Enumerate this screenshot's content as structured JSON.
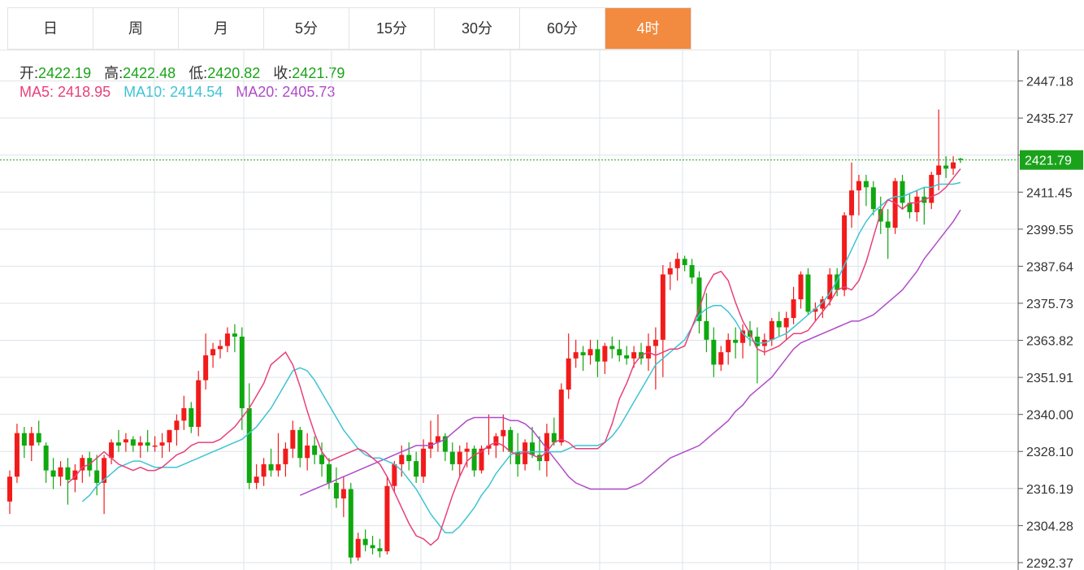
{
  "tabs": [
    {
      "label": "日",
      "active": false
    },
    {
      "label": "周",
      "active": false
    },
    {
      "label": "月",
      "active": false
    },
    {
      "label": "5分",
      "active": false
    },
    {
      "label": "15分",
      "active": false
    },
    {
      "label": "30分",
      "active": false
    },
    {
      "label": "60分",
      "active": false
    },
    {
      "label": "4时",
      "active": true
    }
  ],
  "legend": {
    "open_label": "开:",
    "open": "2422.19",
    "high_label": "高:",
    "high": "2422.48",
    "low_label": "低:",
    "low": "2420.82",
    "close_label": "收:",
    "close": "2421.79",
    "ma5_label": "MA5:",
    "ma5": "2418.95",
    "ma10_label": "MA10:",
    "ma10": "2414.54",
    "ma20_label": "MA20:",
    "ma20": "2405.73"
  },
  "colors": {
    "up": "#f21b1b",
    "down": "#0fa80f",
    "ma5": "#e8407a",
    "ma10": "#3fc3d4",
    "ma20": "#b04bc9",
    "grid": "#dde3ea",
    "price_line": "#1aa31a",
    "active_tab": "#f28a3f"
  },
  "chart_data": {
    "type": "candlestick",
    "y_ticks": [
      "2447.18",
      "2435.27",
      "2423.36",
      "2411.45",
      "2399.55",
      "2387.64",
      "2375.73",
      "2363.82",
      "2351.91",
      "2340.00",
      "2328.10",
      "2316.19",
      "2304.28",
      "2292.37"
    ],
    "ylim": [
      2290.0,
      2457.0
    ],
    "current_price_label": "2421.79",
    "current_price": 2421.79,
    "grid": true,
    "candles": [
      [
        2312,
        2322,
        2308,
        2320
      ],
      [
        2320,
        2337,
        2318,
        2334
      ],
      [
        2334,
        2336,
        2326,
        2330
      ],
      [
        2330,
        2336,
        2325,
        2334
      ],
      [
        2334,
        2338,
        2330,
        2331
      ],
      [
        2330,
        2331,
        2318,
        2322
      ],
      [
        2322,
        2326,
        2316,
        2320
      ],
      [
        2320,
        2325,
        2317,
        2323
      ],
      [
        2323,
        2326,
        2311,
        2319
      ],
      [
        2319,
        2324,
        2315,
        2322
      ],
      [
        2322,
        2327,
        2318,
        2326
      ],
      [
        2326,
        2328,
        2320,
        2322
      ],
      [
        2322,
        2327,
        2314,
        2318
      ],
      [
        2318,
        2327,
        2308,
        2326
      ],
      [
        2326,
        2332,
        2324,
        2331
      ],
      [
        2331,
        2335,
        2328,
        2330
      ],
      [
        2331,
        2334,
        2328,
        2332
      ],
      [
        2332,
        2333,
        2328,
        2330
      ],
      [
        2330,
        2333,
        2326,
        2331
      ],
      [
        2331,
        2335,
        2328,
        2330
      ],
      [
        2330,
        2333,
        2328,
        2330
      ],
      [
        2330,
        2334,
        2326,
        2331
      ],
      [
        2331,
        2335,
        2328,
        2335
      ],
      [
        2335,
        2340,
        2330,
        2338
      ],
      [
        2338,
        2346,
        2335,
        2342
      ],
      [
        2342,
        2344,
        2334,
        2336
      ],
      [
        2336,
        2354,
        2333,
        2351
      ],
      [
        2351,
        2366,
        2348,
        2359
      ],
      [
        2359,
        2363,
        2355,
        2361
      ],
      [
        2361,
        2364,
        2358,
        2362
      ],
      [
        2362,
        2368,
        2360,
        2366
      ],
      [
        2366,
        2369,
        2360,
        2365
      ],
      [
        2365,
        2368,
        2335,
        2342
      ],
      [
        2342,
        2350,
        2316,
        2318
      ],
      [
        2318,
        2324,
        2316,
        2320
      ],
      [
        2320,
        2326,
        2317,
        2324
      ],
      [
        2324,
        2329,
        2320,
        2322
      ],
      [
        2322,
        2334,
        2320,
        2324
      ],
      [
        2324,
        2331,
        2320,
        2329
      ],
      [
        2329,
        2338,
        2326,
        2335
      ],
      [
        2335,
        2336,
        2323,
        2326
      ],
      [
        2326,
        2334,
        2322,
        2330
      ],
      [
        2330,
        2333,
        2324,
        2327
      ],
      [
        2327,
        2331,
        2320,
        2324
      ],
      [
        2324,
        2326,
        2316,
        2318
      ],
      [
        2318,
        2323,
        2310,
        2313
      ],
      [
        2313,
        2320,
        2307,
        2316
      ],
      [
        2316,
        2318,
        2292,
        2294
      ],
      [
        2294,
        2302,
        2293,
        2300
      ],
      [
        2300,
        2303,
        2296,
        2298
      ],
      [
        2298,
        2301,
        2295,
        2297
      ],
      [
        2297,
        2300,
        2294,
        2296
      ],
      [
        2296,
        2320,
        2295,
        2317
      ],
      [
        2317,
        2325,
        2315,
        2324
      ],
      [
        2324,
        2330,
        2320,
        2327
      ],
      [
        2327,
        2331,
        2322,
        2325
      ],
      [
        2325,
        2328,
        2318,
        2320
      ],
      [
        2320,
        2332,
        2318,
        2329
      ],
      [
        2329,
        2338,
        2326,
        2331
      ],
      [
        2331,
        2340,
        2328,
        2333
      ],
      [
        2333,
        2334,
        2325,
        2328
      ],
      [
        2328,
        2331,
        2322,
        2324
      ],
      [
        2324,
        2330,
        2320,
        2328
      ],
      [
        2328,
        2331,
        2323,
        2329
      ],
      [
        2329,
        2330,
        2320,
        2322
      ],
      [
        2322,
        2330,
        2321,
        2329
      ],
      [
        2329,
        2340,
        2327,
        2330
      ],
      [
        2330,
        2334,
        2326,
        2333
      ],
      [
        2333,
        2340,
        2328,
        2335
      ],
      [
        2335,
        2336,
        2324,
        2328
      ],
      [
        2328,
        2334,
        2320,
        2324
      ],
      [
        2324,
        2332,
        2322,
        2331
      ],
      [
        2331,
        2336,
        2326,
        2327
      ],
      [
        2327,
        2333,
        2322,
        2325
      ],
      [
        2325,
        2337,
        2320,
        2334
      ],
      [
        2334,
        2339,
        2330,
        2331
      ],
      [
        2331,
        2350,
        2330,
        2348
      ],
      [
        2348,
        2366,
        2345,
        2358
      ],
      [
        2358,
        2364,
        2355,
        2360
      ],
      [
        2360,
        2362,
        2354,
        2359
      ],
      [
        2359,
        2364,
        2356,
        2361
      ],
      [
        2361,
        2364,
        2352,
        2357
      ],
      [
        2357,
        2363,
        2353,
        2362
      ],
      [
        2362,
        2365,
        2358,
        2361
      ],
      [
        2361,
        2364,
        2357,
        2359
      ],
      [
        2359,
        2362,
        2356,
        2358
      ],
      [
        2358,
        2362,
        2355,
        2360
      ],
      [
        2360,
        2363,
        2356,
        2358
      ],
      [
        2358,
        2366,
        2354,
        2362
      ],
      [
        2362,
        2368,
        2348,
        2364
      ],
      [
        2364,
        2388,
        2352,
        2385
      ],
      [
        2385,
        2389,
        2380,
        2387
      ],
      [
        2387,
        2392,
        2383,
        2390
      ],
      [
        2390,
        2391,
        2386,
        2388
      ],
      [
        2388,
        2390,
        2382,
        2384
      ],
      [
        2384,
        2386,
        2366,
        2370
      ],
      [
        2370,
        2379,
        2360,
        2364
      ],
      [
        2364,
        2368,
        2352,
        2356
      ],
      [
        2356,
        2362,
        2354,
        2360
      ],
      [
        2360,
        2366,
        2356,
        2364
      ],
      [
        2364,
        2368,
        2358,
        2363
      ],
      [
        2363,
        2369,
        2358,
        2367
      ],
      [
        2367,
        2370,
        2362,
        2365
      ],
      [
        2365,
        2368,
        2350,
        2362
      ],
      [
        2362,
        2366,
        2359,
        2364
      ],
      [
        2364,
        2371,
        2362,
        2370
      ],
      [
        2370,
        2373,
        2365,
        2368
      ],
      [
        2368,
        2373,
        2364,
        2371
      ],
      [
        2371,
        2381,
        2369,
        2377
      ],
      [
        2377,
        2386,
        2374,
        2385
      ],
      [
        2385,
        2387,
        2372,
        2373
      ],
      [
        2373,
        2376,
        2370,
        2374
      ],
      [
        2374,
        2378,
        2371,
        2377
      ],
      [
        2377,
        2387,
        2375,
        2385
      ],
      [
        2385,
        2387,
        2378,
        2380
      ],
      [
        2380,
        2405,
        2378,
        2404
      ],
      [
        2404,
        2421,
        2400,
        2412
      ],
      [
        2412,
        2417,
        2404,
        2415
      ],
      [
        2415,
        2417,
        2407,
        2413
      ],
      [
        2413,
        2415,
        2404,
        2406
      ],
      [
        2406,
        2410,
        2398,
        2402
      ],
      [
        2402,
        2406,
        2390,
        2400
      ],
      [
        2400,
        2416,
        2398,
        2415
      ],
      [
        2415,
        2417,
        2406,
        2408
      ],
      [
        2408,
        2411,
        2403,
        2405
      ],
      [
        2405,
        2412,
        2402,
        2410
      ],
      [
        2410,
        2413,
        2401,
        2408
      ],
      [
        2408,
        2418,
        2406,
        2417
      ],
      [
        2417,
        2438,
        2412,
        2420
      ],
      [
        2420,
        2423,
        2416,
        2419
      ],
      [
        2419,
        2423,
        2417,
        2421
      ],
      [
        2422.19,
        2422.48,
        2420.82,
        2421.79
      ]
    ],
    "ma5": [
      2318,
      2320,
      2323,
      2324,
      2326,
      2328,
      2326,
      2324,
      2323,
      2322,
      2323,
      2322,
      2322,
      2323,
      2325,
      2327,
      2328,
      2330,
      2331,
      2331,
      2331,
      2332,
      2334,
      2336,
      2339,
      2342,
      2346,
      2350,
      2356,
      2358,
      2360,
      2356,
      2349,
      2341,
      2334,
      2328,
      2325,
      2326,
      2327,
      2328,
      2329,
      2328,
      2326,
      2324,
      2320,
      2315,
      2310,
      2305,
      2301,
      2300,
      2298,
      2300,
      2307,
      2314,
      2320,
      2325,
      2327,
      2328,
      2330,
      2331,
      2330,
      2328,
      2327,
      2328,
      2327,
      2326,
      2328,
      2331,
      2332,
      2331,
      2329,
      2329,
      2329,
      2329,
      2331,
      2337,
      2345,
      2350,
      2356,
      2359,
      2360,
      2359,
      2360,
      2361,
      2361,
      2362,
      2368,
      2374,
      2381,
      2385,
      2386,
      2383,
      2376,
      2370,
      2366,
      2361,
      2360,
      2361,
      2362,
      2364,
      2366,
      2366,
      2367,
      2370,
      2373,
      2376,
      2380,
      2381,
      2380,
      2383,
      2389,
      2397,
      2405,
      2409,
      2408,
      2406,
      2408,
      2408,
      2409,
      2410,
      2411,
      2413,
      2416,
      2418.95
    ],
    "ma10": [
      2312,
      2314,
      2317,
      2319,
      2321,
      2323,
      2324,
      2325,
      2325,
      2324,
      2323,
      2323,
      2323,
      2323,
      2324,
      2325,
      2326,
      2327,
      2328,
      2329,
      2330,
      2331,
      2332,
      2334,
      2336,
      2339,
      2342,
      2346,
      2350,
      2354,
      2355,
      2354,
      2351,
      2347,
      2343,
      2339,
      2335,
      2332,
      2329,
      2327,
      2326,
      2326,
      2325,
      2324,
      2322,
      2319,
      2316,
      2312,
      2308,
      2305,
      2302,
      2302,
      2304,
      2307,
      2310,
      2314,
      2317,
      2321,
      2324,
      2327,
      2328,
      2328,
      2328,
      2328,
      2328,
      2328,
      2328,
      2329,
      2330,
      2330,
      2330,
      2330,
      2331,
      2333,
      2336,
      2340,
      2344,
      2348,
      2352,
      2356,
      2358,
      2360,
      2362,
      2364,
      2368,
      2372,
      2374,
      2375,
      2375,
      2373,
      2370,
      2366,
      2364,
      2363,
      2363,
      2364,
      2365,
      2366,
      2368,
      2370,
      2372,
      2374,
      2376,
      2379,
      2383,
      2388,
      2393,
      2398,
      2402,
      2405,
      2407,
      2409,
      2410,
      2410,
      2411,
      2412,
      2413,
      2413,
      2414,
      2414,
      2414,
      2414.54
    ],
    "ma20": [
      2314,
      2315,
      2316,
      2317,
      2318,
      2319,
      2320,
      2321,
      2322,
      2323,
      2324,
      2325,
      2326,
      2327,
      2328,
      2329,
      2330,
      2330,
      2330,
      2331,
      2332,
      2334,
      2336,
      2338,
      2339,
      2339,
      2339,
      2339,
      2339,
      2338,
      2338,
      2337,
      2335,
      2332,
      2329,
      2326,
      2323,
      2320,
      2318,
      2317,
      2316,
      2316,
      2316,
      2316,
      2316,
      2316,
      2317,
      2318,
      2320,
      2322,
      2324,
      2326,
      2327,
      2328,
      2329,
      2330,
      2332,
      2334,
      2336,
      2338,
      2341,
      2343,
      2346,
      2348,
      2350,
      2352,
      2355,
      2358,
      2361,
      2363,
      2364,
      2365,
      2366,
      2367,
      2368,
      2369,
      2370,
      2370,
      2371,
      2372,
      2374,
      2376,
      2378,
      2380,
      2383,
      2386,
      2390,
      2393,
      2396,
      2399,
      2402,
      2405.73
    ]
  }
}
